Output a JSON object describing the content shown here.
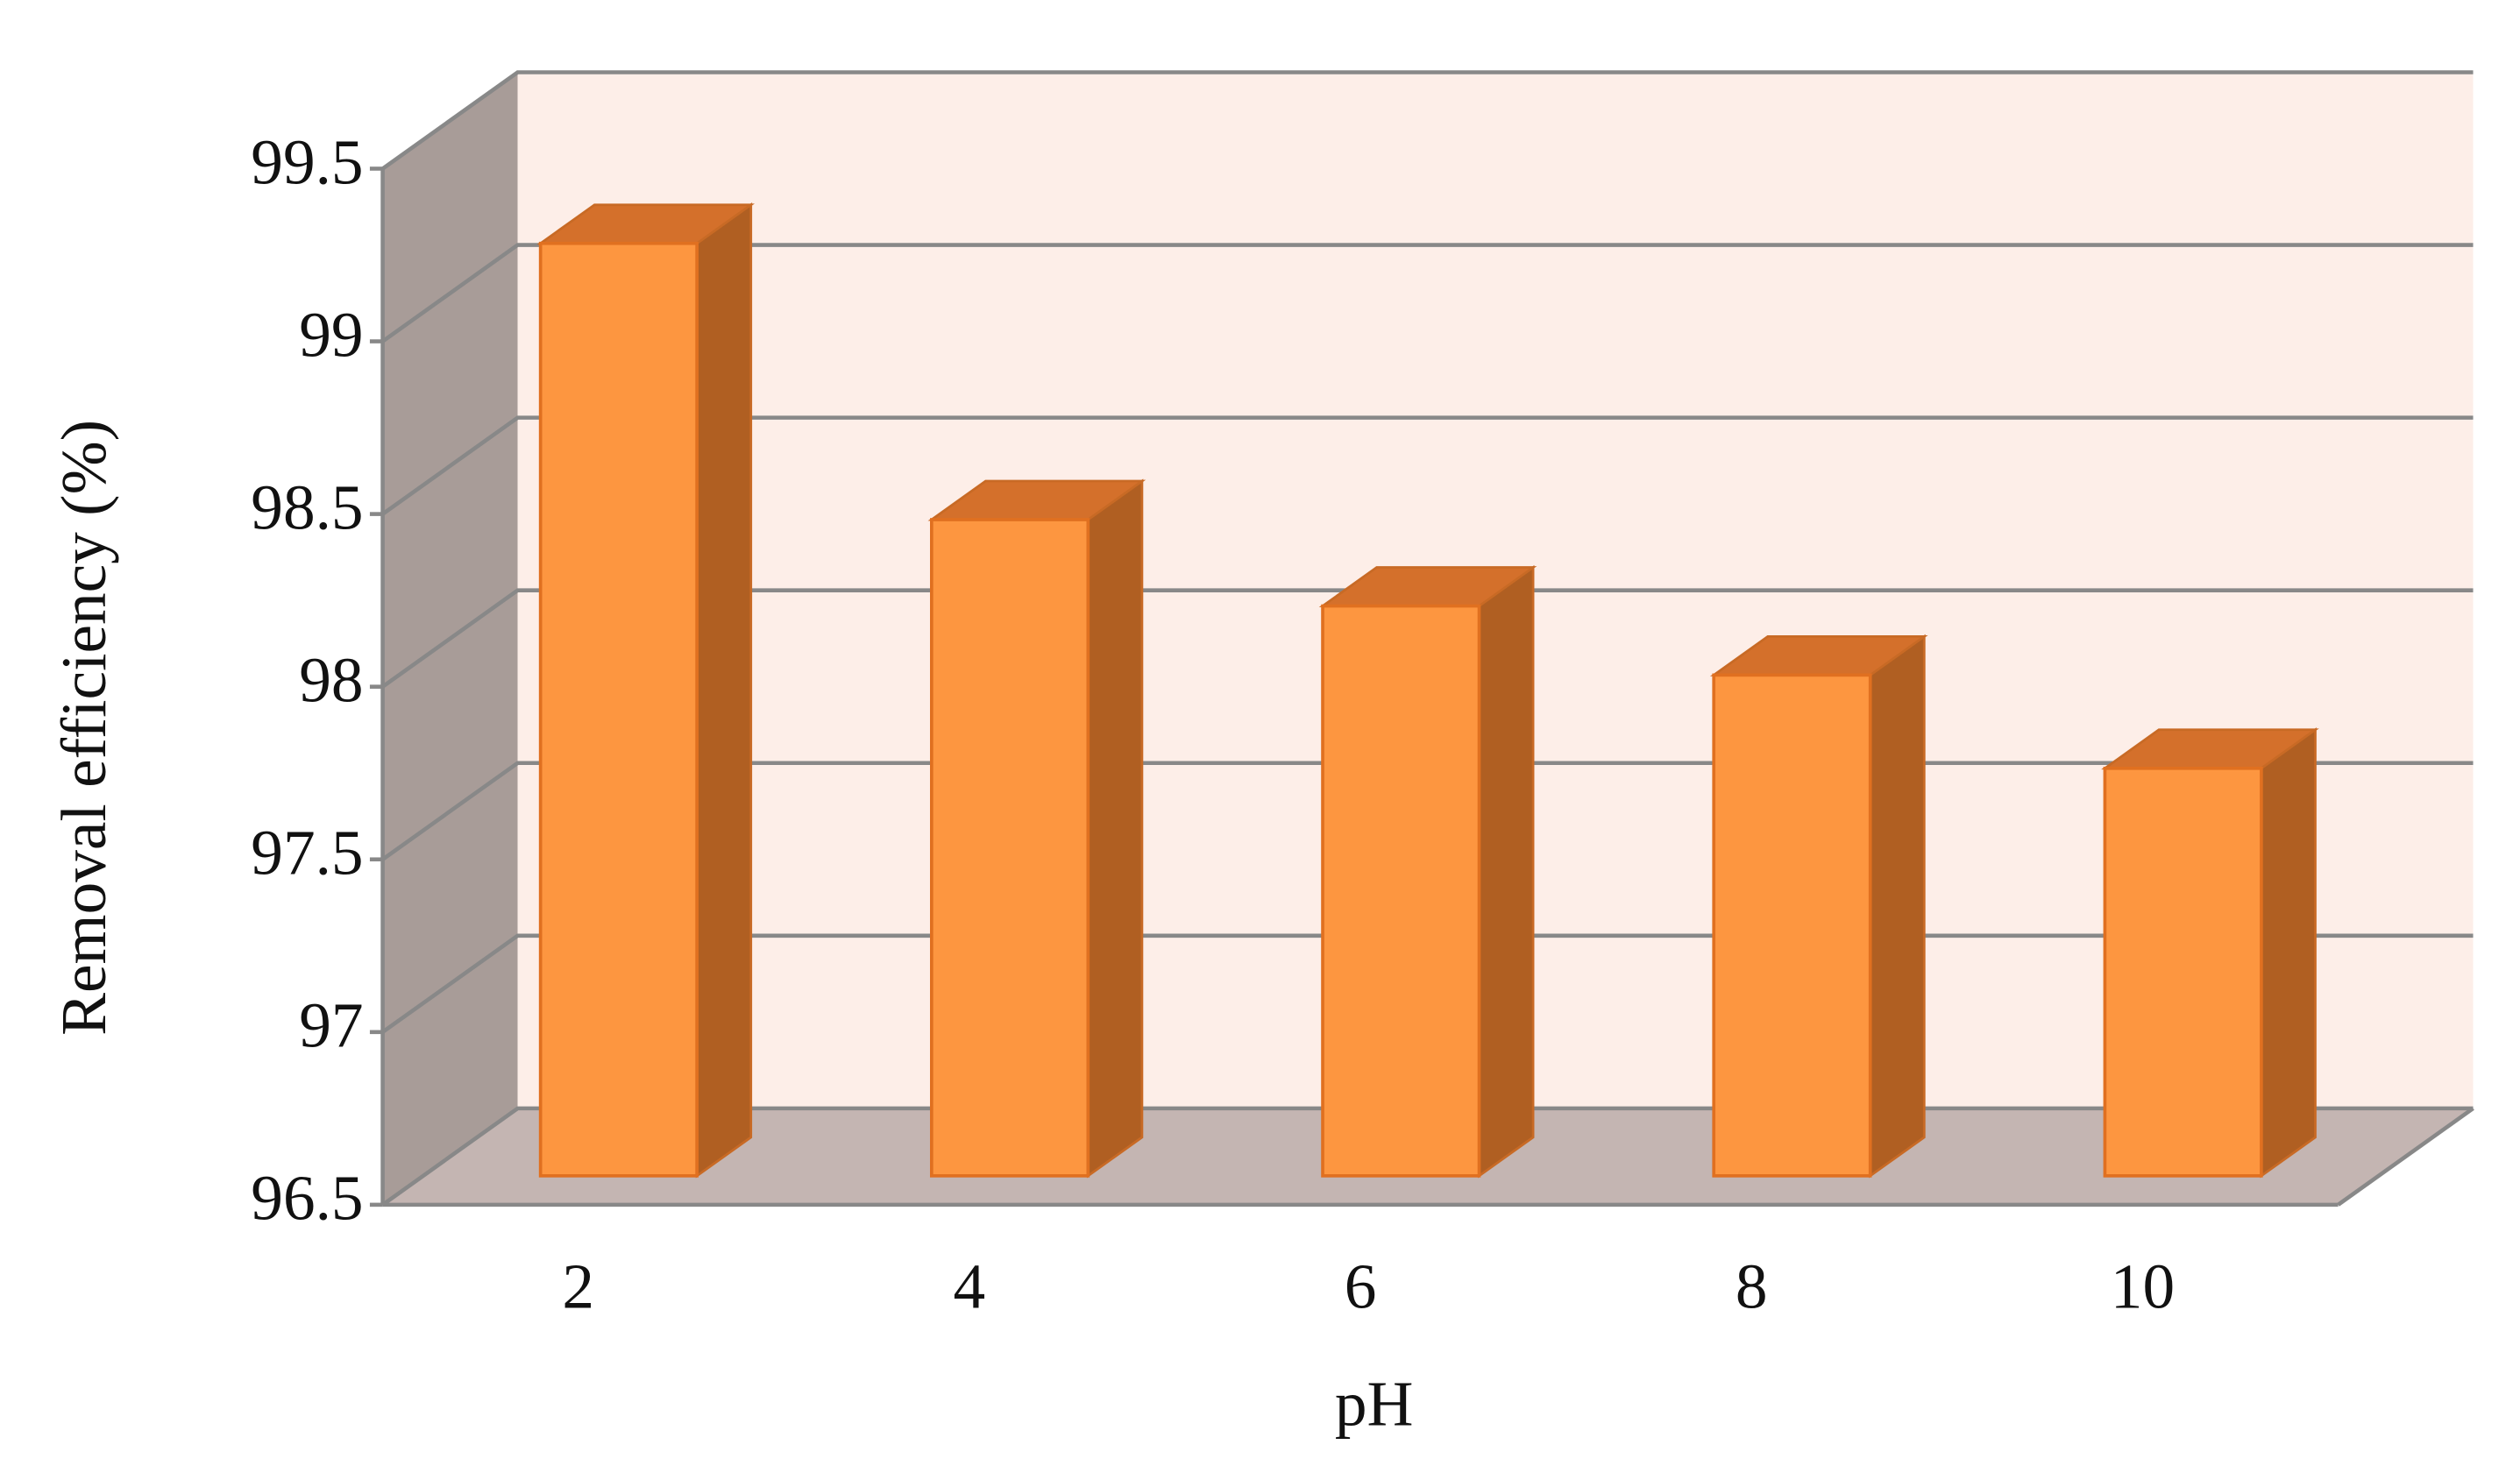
{
  "chart_data": {
    "type": "bar3d",
    "x_label": "pH",
    "y_label": "Removal efficiency (%)",
    "categories": [
      "2",
      "4",
      "6",
      "8",
      "10"
    ],
    "values": [
      99.2,
      98.4,
      98.15,
      97.95,
      97.68
    ],
    "color": "#fd9640",
    "ylim": [
      96.5,
      99.5
    ],
    "yticks": [
      96.5,
      97,
      97.5,
      98,
      98.5,
      99,
      99.5
    ],
    "grid": true
  }
}
